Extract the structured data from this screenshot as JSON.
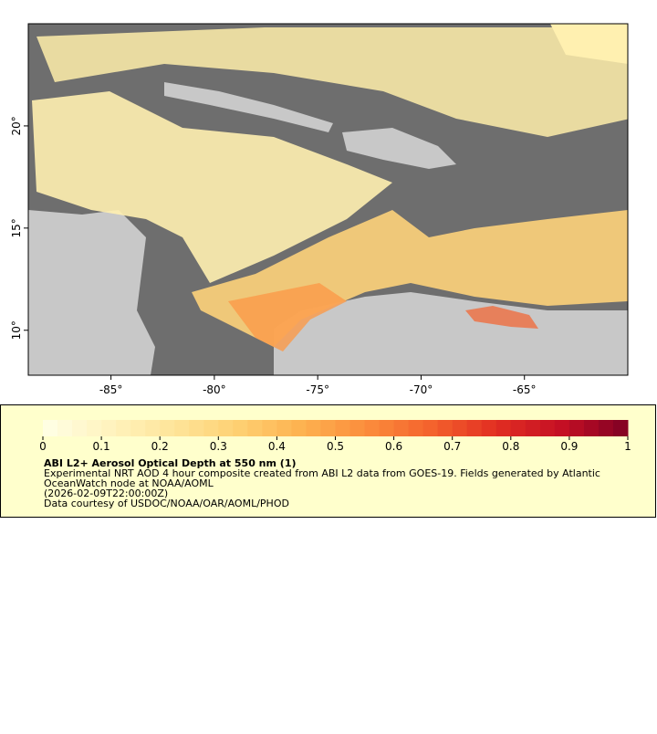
{
  "map": {
    "xlim": [
      -89,
      -60
    ],
    "ylim": [
      7.8,
      25
    ],
    "xticks": [
      {
        "value": -85,
        "label": "-85°"
      },
      {
        "value": -80,
        "label": "-80°"
      },
      {
        "value": -75,
        "label": "-75°"
      },
      {
        "value": -70,
        "label": "-70°"
      },
      {
        "value": -65,
        "label": "-65°"
      }
    ],
    "yticks": [
      {
        "value": 10,
        "label": "10°"
      },
      {
        "value": 15,
        "label": "15°"
      },
      {
        "value": 20,
        "label": "20°"
      }
    ]
  },
  "legend": {
    "colorbar": {
      "range": [
        0,
        1
      ],
      "ticks": [
        0,
        0.1,
        0.2,
        0.3,
        0.4,
        0.5,
        0.6,
        0.7,
        0.8,
        0.9,
        1
      ],
      "colormap": [
        "#ffffe6",
        "#fff3bf",
        "#fee59a",
        "#fed072",
        "#fdb14f",
        "#fb8c3c",
        "#f4612c",
        "#e12d22",
        "#c40f24",
        "#7f0024"
      ]
    },
    "title": "ABI L2+ Aerosol Optical Depth at 550 nm (1)",
    "lines": [
      "Experimental NRT AOD 4 hour composite created from ABI L2 data from GOES-19. Fields generated by Atlantic",
      "OceanWatch node at NOAA/AOML",
      "(2026-02-09T22:00:00Z)",
      "Data courtesy of USDOC/NOAA/OAR/AOML/PHOD"
    ]
  }
}
